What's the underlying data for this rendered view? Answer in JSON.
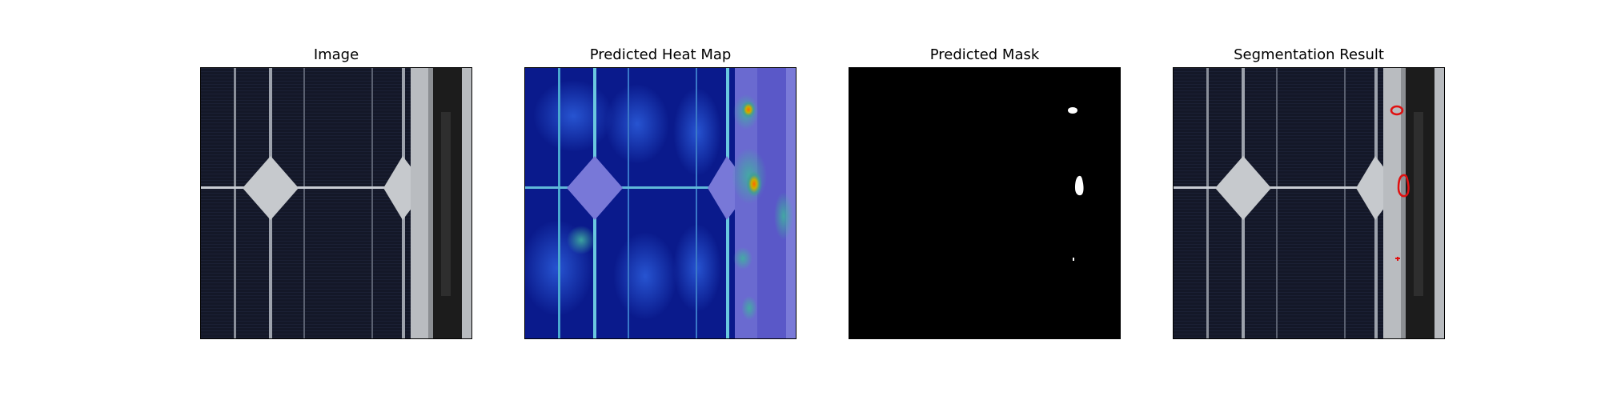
{
  "panels": [
    {
      "id": "image",
      "title": "Image"
    },
    {
      "id": "heatmap",
      "title": "Predicted Heat Map"
    },
    {
      "id": "mask",
      "title": "Predicted Mask"
    },
    {
      "id": "segmentation",
      "title": "Segmentation Result"
    }
  ],
  "colors": {
    "cell": "#141828",
    "busbar": "#c8ccd4",
    "frame_metal": "#b9bcc0",
    "frame_dark": "#1a1a1a",
    "heat_base": "#0a1a8c",
    "mask_bg": "#000000",
    "mask_fg": "#ffffff",
    "contour": "#e01010"
  }
}
